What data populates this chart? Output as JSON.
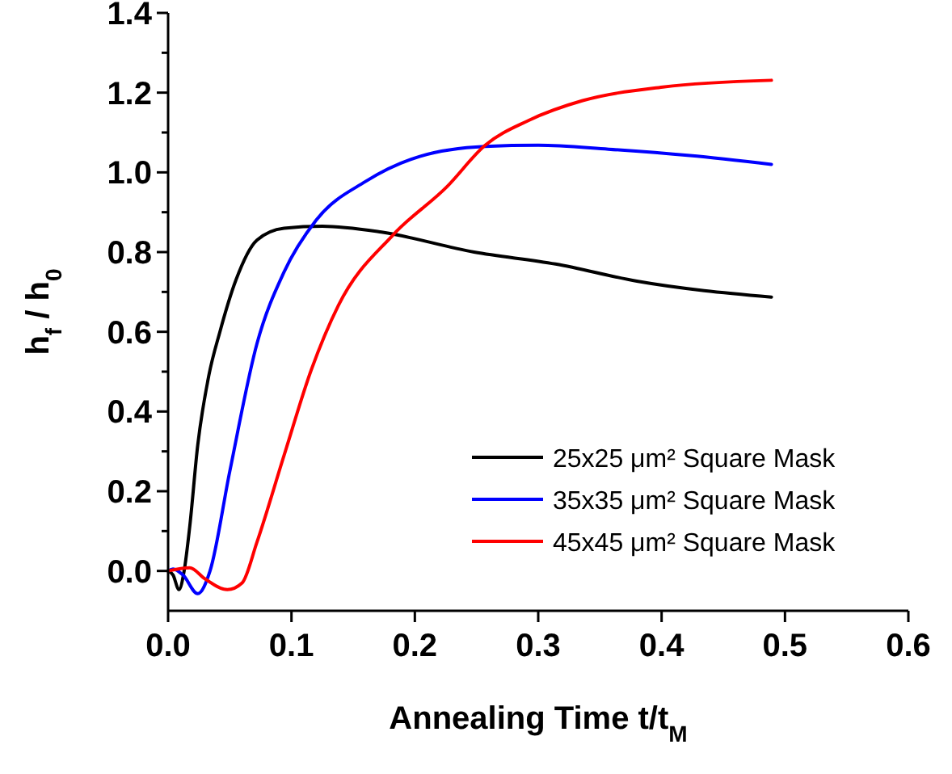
{
  "chart_data": {
    "type": "line",
    "xlabel": "Annealing Time t/t$_{M}$",
    "ylabel": "h$_{f}$ / h$_{0}$",
    "xlim": [
      0,
      0.6
    ],
    "xticks": [
      {
        "value": 0,
        "label": "0.0"
      },
      0.1,
      0.2,
      0.3,
      0.4,
      0.5,
      0.6
    ],
    "ylim": [
      -0.1,
      1.4
    ],
    "yticks": [
      {
        "value": 0,
        "label": "0.0"
      },
      {
        "value": 0.1,
        "label": null
      },
      0.2,
      {
        "value": 0.3,
        "label": null
      },
      0.4,
      {
        "value": 0.5,
        "label": null
      },
      0.6,
      {
        "value": 0.7,
        "label": null
      },
      0.8,
      {
        "value": 0.9,
        "label": null
      },
      {
        "value": 1,
        "label": "1.0"
      },
      {
        "value": 1.1,
        "label": null
      },
      1.2,
      {
        "value": 1.3,
        "label": null
      },
      1.4
    ],
    "legend": "bottom right",
    "grid": false,
    "marker": "none",
    "line_style": "solid",
    "series": [
      {
        "name": "25x25 μm² Square Mask",
        "color": "#000000",
        "x": [
          0,
          0.004,
          0.0088,
          0.013,
          0.0175,
          0.024,
          0.033,
          0.042,
          0.055,
          0.072,
          0.094,
          0.125,
          0.173,
          0.248,
          0.314,
          0.38,
          0.489
        ],
        "values": [
          0,
          -0.01,
          -0.047,
          0,
          0.11,
          0.315,
          0.49,
          0.6,
          0.73,
          0.83,
          0.86,
          0.865,
          0.85,
          0.8,
          0.77,
          0.727,
          0.687
        ]
      },
      {
        "name": "35x35 μm² Square Mask",
        "color": "#0000ff",
        "x": [
          0,
          0.004,
          0.012,
          0.024,
          0.034,
          0.05,
          0.072,
          0.094,
          0.12,
          0.16,
          0.204,
          0.257,
          0.3,
          0.357,
          0.423,
          0.489
        ],
        "values": [
          0,
          0.005,
          -0.01,
          -0.057,
          0,
          0.25,
          0.57,
          0.75,
          0.88,
          0.977,
          1.04,
          1.065,
          1.068,
          1.058,
          1.042,
          1.02
        ]
      },
      {
        "name": "45x45 μm² Square Mask",
        "color": "#ff0000",
        "x": [
          0,
          0.0175,
          0.03,
          0.048,
          0.06,
          0.072,
          0.094,
          0.116,
          0.138,
          0.182,
          0.226,
          0.257,
          0.292,
          0.336,
          0.401,
          0.489
        ],
        "values": [
          0,
          0.008,
          -0.02,
          -0.047,
          -0.03,
          0.072,
          0.29,
          0.504,
          0.666,
          0.842,
          0.964,
          1.068,
          1.13,
          1.18,
          1.214,
          1.231
        ]
      }
    ]
  }
}
